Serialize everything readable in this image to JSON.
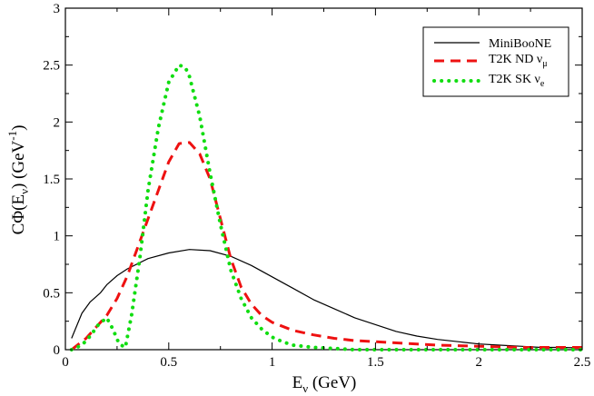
{
  "chart_data": {
    "type": "line",
    "title": "",
    "xlabel": {
      "main": "E",
      "sub": "ν",
      "rest": " (GeV)"
    },
    "ylabel": {
      "pre": "CΦ(E",
      "sub": "ν",
      "mid": ") (GeV",
      "sup": "-1",
      "post": ")"
    },
    "xlim": [
      0,
      2.5
    ],
    "ylim": [
      0,
      3
    ],
    "x_ticks": [
      0,
      0.5,
      1,
      1.5,
      2,
      2.5
    ],
    "x_tick_labels": [
      "0",
      "0.5",
      "1",
      "1.5",
      "2",
      "2.5"
    ],
    "y_ticks": [
      0,
      0.5,
      1,
      1.5,
      2,
      2.5,
      3
    ],
    "y_tick_labels": [
      "0",
      "0.5",
      "1",
      "1.5",
      "2",
      "2.5",
      "3"
    ],
    "legend_position": "top-right",
    "series": [
      {
        "name": "MiniBooNE",
        "legend": {
          "main": "MiniBooNE",
          "sub": ""
        },
        "color": "#000000",
        "style": "solid",
        "x": [
          0.03,
          0.08,
          0.12,
          0.17,
          0.2,
          0.25,
          0.3,
          0.4,
          0.5,
          0.6,
          0.7,
          0.8,
          0.9,
          1.0,
          1.1,
          1.2,
          1.3,
          1.4,
          1.5,
          1.6,
          1.7,
          1.8,
          1.9,
          2.0,
          2.1,
          2.2,
          2.3,
          2.4,
          2.5
        ],
        "y": [
          0.1,
          0.32,
          0.42,
          0.5,
          0.57,
          0.65,
          0.71,
          0.8,
          0.85,
          0.88,
          0.87,
          0.82,
          0.74,
          0.64,
          0.54,
          0.44,
          0.36,
          0.28,
          0.22,
          0.16,
          0.12,
          0.09,
          0.07,
          0.05,
          0.04,
          0.03,
          0.02,
          0.02,
          0.015
        ]
      },
      {
        "name": "T2K ND νμ",
        "legend": {
          "main": "T2K ND ν",
          "sub": "μ"
        },
        "color": "#ee1111",
        "style": "dashed",
        "x": [
          0.03,
          0.1,
          0.15,
          0.2,
          0.25,
          0.3,
          0.35,
          0.4,
          0.45,
          0.5,
          0.55,
          0.6,
          0.65,
          0.7,
          0.75,
          0.8,
          0.85,
          0.9,
          0.95,
          1.0,
          1.1,
          1.2,
          1.3,
          1.4,
          1.5,
          1.6,
          1.8,
          2.0,
          2.2,
          2.5
        ],
        "y": [
          0.0,
          0.1,
          0.2,
          0.3,
          0.45,
          0.65,
          0.9,
          1.15,
          1.4,
          1.65,
          1.81,
          1.82,
          1.72,
          1.5,
          1.15,
          0.8,
          0.55,
          0.4,
          0.3,
          0.24,
          0.17,
          0.13,
          0.1,
          0.08,
          0.07,
          0.06,
          0.04,
          0.03,
          0.02,
          0.02
        ]
      },
      {
        "name": "T2K SK νe",
        "legend": {
          "main": "T2K SK  ν",
          "sub": "e"
        },
        "color": "#11dd11",
        "style": "dotted",
        "x": [
          0.03,
          0.08,
          0.12,
          0.16,
          0.2,
          0.23,
          0.26,
          0.29,
          0.32,
          0.36,
          0.4,
          0.45,
          0.5,
          0.55,
          0.58,
          0.6,
          0.65,
          0.7,
          0.75,
          0.8,
          0.85,
          0.9,
          0.95,
          1.0,
          1.05,
          1.1,
          1.2,
          1.3,
          1.4,
          1.5,
          1.7,
          2.0,
          2.5
        ],
        "y": [
          0.0,
          0.04,
          0.12,
          0.22,
          0.28,
          0.18,
          0.05,
          0.02,
          0.3,
          0.8,
          1.4,
          1.95,
          2.35,
          2.5,
          2.48,
          2.4,
          2.05,
          1.55,
          1.1,
          0.7,
          0.45,
          0.28,
          0.18,
          0.11,
          0.07,
          0.04,
          0.02,
          0.01,
          0.0,
          0.0,
          0.0,
          0.0,
          0.0
        ]
      }
    ]
  }
}
